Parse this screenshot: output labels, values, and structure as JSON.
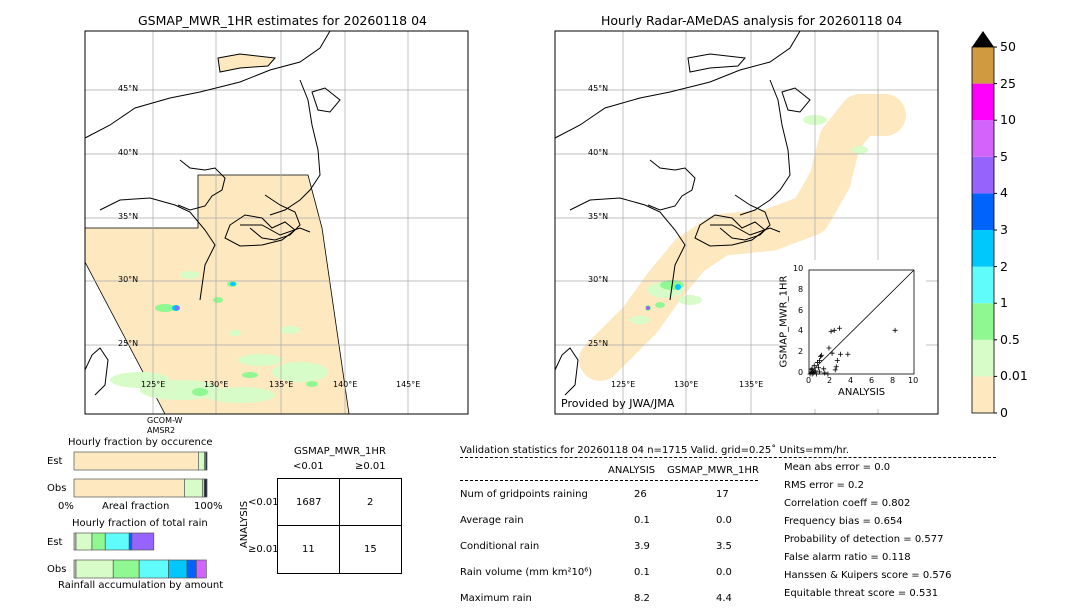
{
  "left_map": {
    "title": "GSMAP_MWR_1HR estimates for 20260118 04",
    "lat_labels": [
      "45°N",
      "40°N",
      "35°N",
      "30°N",
      "25°N"
    ],
    "lon_labels": [
      "125°E",
      "130°E",
      "135°E",
      "140°E",
      "145°E"
    ],
    "sensor_label": [
      "GCOM-W",
      "AMSR2"
    ]
  },
  "right_map": {
    "title": "Hourly Radar-AMeDAS analysis for 20260118 04",
    "lat_labels": [
      "45°N",
      "40°N",
      "35°N",
      "30°N",
      "25°N"
    ],
    "lon_labels": [
      "125°E",
      "130°E",
      "135°E"
    ],
    "credit": "Provided by JWA/JMA"
  },
  "scatter": {
    "type": "scatter",
    "xlabel": "ANALYSIS",
    "ylabel": "GSMAP_MWR_1HR",
    "xlim": [
      0,
      10
    ],
    "ylim": [
      0,
      10
    ],
    "ticks": [
      "0",
      "2",
      "4",
      "6",
      "8",
      "10"
    ],
    "points": [
      [
        8.2,
        4.2
      ],
      [
        2.9,
        4.4
      ],
      [
        2.4,
        4.2
      ],
      [
        2.1,
        4.1
      ],
      [
        1.9,
        2.5
      ],
      [
        2.2,
        2.0
      ],
      [
        3.0,
        1.9
      ],
      [
        3.7,
        1.9
      ],
      [
        2.7,
        1.3
      ],
      [
        2.6,
        0.7
      ],
      [
        2.5,
        0.4
      ],
      [
        1.2,
        1.8
      ],
      [
        1.1,
        1.7
      ],
      [
        1.0,
        1.3
      ],
      [
        0.8,
        1.1
      ],
      [
        0.5,
        0.8
      ],
      [
        0.3,
        0.5
      ],
      [
        0.2,
        0.2
      ],
      [
        0.4,
        0.1
      ],
      [
        0.6,
        0.3
      ],
      [
        0.9,
        0.6
      ],
      [
        1.4,
        0.5
      ],
      [
        0.7,
        0.0
      ],
      [
        0.1,
        0.0
      ],
      [
        0.3,
        0.0
      ],
      [
        1.5,
        0.1
      ],
      [
        1.8,
        0.0
      ],
      [
        0.5,
        0.2
      ],
      [
        0.2,
        0.4
      ],
      [
        1.0,
        0.2
      ]
    ]
  },
  "colorbar": {
    "levels": [
      "0",
      "0.01",
      "0.5",
      "1",
      "2",
      "3",
      "4",
      "5",
      "10",
      "25",
      "50"
    ],
    "colors": [
      "#fde8c0",
      "#d8fcc8",
      "#90f890",
      "#60fcfc",
      "#00c8fc",
      "#0064fc",
      "#9664fc",
      "#d264fc",
      "#fc00fc",
      "#d09a40"
    ],
    "extend_color": "#000000"
  },
  "occurrence": {
    "title": "Hourly fraction by occurence",
    "rows": [
      "Est",
      "Obs"
    ],
    "xlabel_left": "0%",
    "xlabel_mid": "Areal fraction",
    "xlabel_right": "100%",
    "est": [
      93.5,
      4.5,
      1,
      1
    ],
    "obs": [
      83,
      13.5,
      1.5,
      2
    ]
  },
  "total_rain": {
    "title": "Hourly fraction of total rain",
    "rows": [
      "Est",
      "Obs"
    ],
    "xlabel": "Rainfall accumulation by amount",
    "est": [
      1.5,
      12,
      10,
      18,
      2,
      16.5
    ],
    "obs": [
      1.5,
      28,
      19.5,
      22,
      14,
      7,
      7.5
    ]
  },
  "contingency": {
    "title": "GSMAP_MWR_1HR",
    "col_headers": [
      "<0.01",
      "≥0.01"
    ],
    "row_axis": "ANALYSIS",
    "row_headers": [
      "<0.01",
      "≥0.01"
    ],
    "cells": [
      [
        "1687",
        "2"
      ],
      [
        "11",
        "15"
      ]
    ]
  },
  "validation": {
    "header": "Validation statistics for 20260118 04  n=1715 Valid. grid=0.25˚ Units=mm/hr.",
    "columns": [
      "ANALYSIS",
      "GSMAP_MWR_1HR"
    ],
    "rows": [
      {
        "label": "Num of gridpoints raining",
        "a": "26",
        "g": "17"
      },
      {
        "label": "Average rain",
        "a": "0.1",
        "g": "0.0"
      },
      {
        "label": "Conditional rain",
        "a": "3.9",
        "g": "3.5"
      },
      {
        "label": "Rain volume (mm km²10⁶)",
        "a": "0.1",
        "g": "0.0"
      },
      {
        "label": "Maximum rain",
        "a": "8.2",
        "g": "4.4"
      }
    ],
    "scores": [
      "Mean abs error =    0.0",
      "RMS error =    0.2",
      "Correlation coeff =  0.802",
      "Frequency bias =  0.654",
      "Probability of detection =  0.577",
      "False alarm ratio =  0.118",
      "Hanssen & Kuipers score =  0.576",
      "Equitable threat score =  0.531"
    ]
  }
}
